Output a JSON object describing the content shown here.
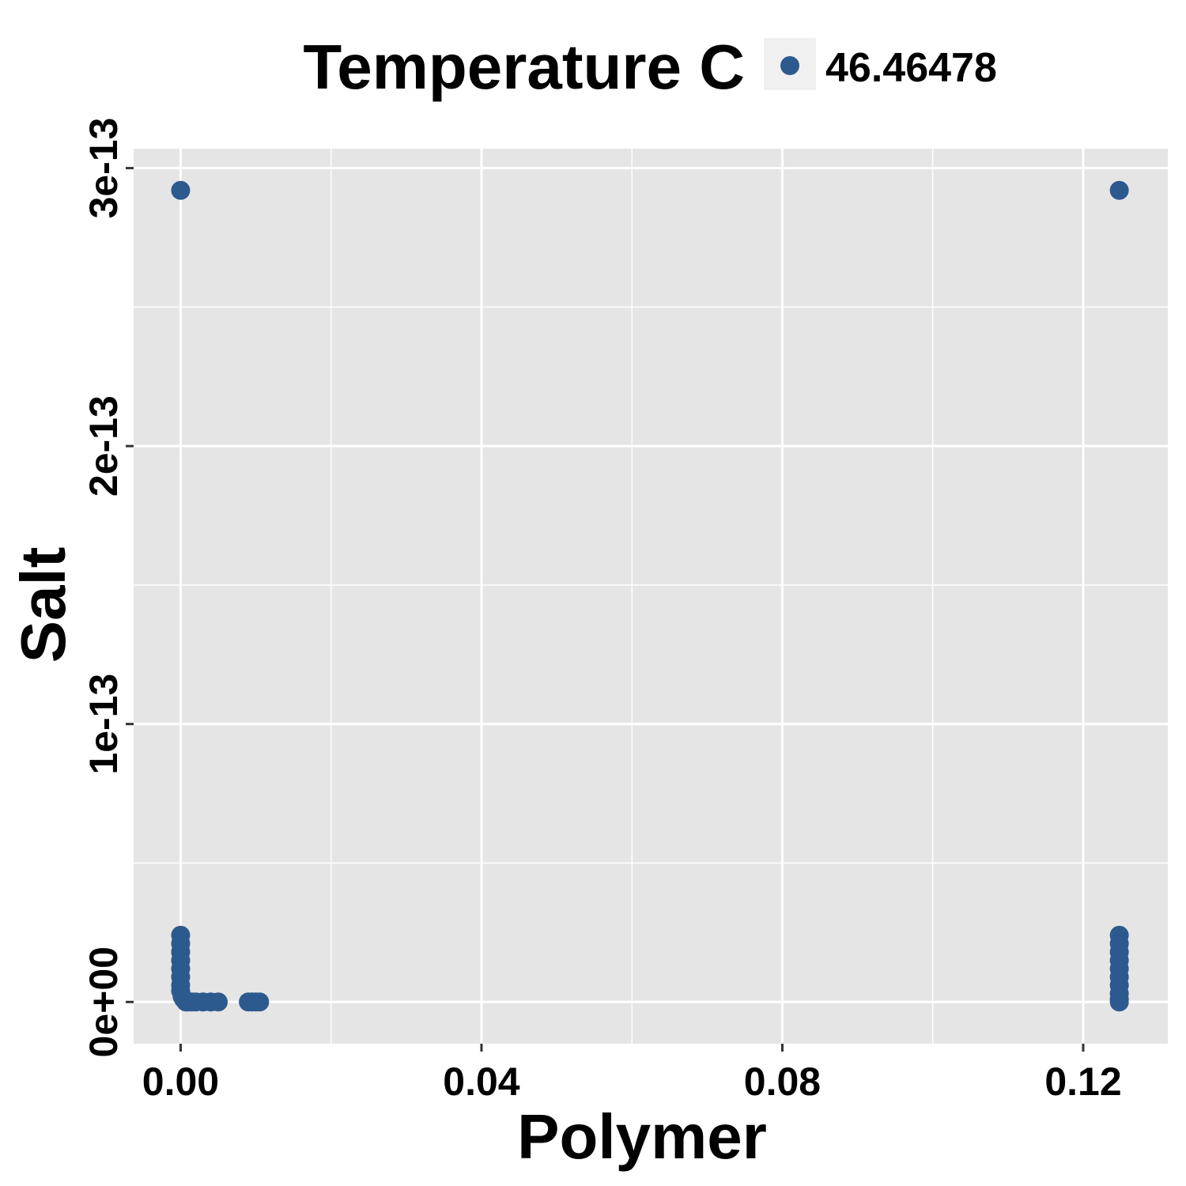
{
  "chart_data": {
    "type": "scatter",
    "title": "",
    "xlabel": "Polymer",
    "ylabel": "Salt",
    "xlim": [
      -0.00625,
      0.13125
    ],
    "ylim": [
      -1.5e-14,
      3.07e-13
    ],
    "x_ticks": [
      {
        "value": 0.0,
        "label": "0.00"
      },
      {
        "value": 0.04,
        "label": "0.04"
      },
      {
        "value": 0.08,
        "label": "0.08"
      },
      {
        "value": 0.12,
        "label": "0.12"
      }
    ],
    "y_ticks": [
      {
        "value": 0.0,
        "label": "0e+00"
      },
      {
        "value": 1e-13,
        "label": "1e-13"
      },
      {
        "value": 2e-13,
        "label": "2e-13"
      },
      {
        "value": 3e-13,
        "label": "3e-13"
      }
    ],
    "grid": true,
    "legend": {
      "title": "Temperature C",
      "placement": "top",
      "entries": [
        {
          "label": "46.46478",
          "color": "#2d5a8e"
        }
      ]
    },
    "series": [
      {
        "name": "46.46478",
        "color": "#2d5a8e",
        "points": [
          {
            "x": 0.0,
            "y": 2.92e-13
          },
          {
            "x": 0.1248,
            "y": 2.92e-13
          },
          {
            "x": 0.0,
            "y": 2.4e-14
          },
          {
            "x": 0.0,
            "y": 2.1e-14
          },
          {
            "x": 0.0,
            "y": 1.8e-14
          },
          {
            "x": 0.0,
            "y": 1.5e-14
          },
          {
            "x": 0.0,
            "y": 1.2e-14
          },
          {
            "x": 0.0,
            "y": 9e-15
          },
          {
            "x": 0.0,
            "y": 6e-15
          },
          {
            "x": 0.0,
            "y": 4e-15
          },
          {
            "x": 0.0002,
            "y": 2e-15
          },
          {
            "x": 0.0004,
            "y": 1e-15
          },
          {
            "x": 0.0007,
            "y": 0.0
          },
          {
            "x": 0.001,
            "y": 0.0
          },
          {
            "x": 0.0015,
            "y": 0.0
          },
          {
            "x": 0.002,
            "y": 0.0
          },
          {
            "x": 0.003,
            "y": 0.0
          },
          {
            "x": 0.004,
            "y": 0.0
          },
          {
            "x": 0.005,
            "y": 0.0
          },
          {
            "x": 0.009,
            "y": 0.0
          },
          {
            "x": 0.0095,
            "y": 0.0
          },
          {
            "x": 0.01,
            "y": 0.0
          },
          {
            "x": 0.0105,
            "y": 0.0
          },
          {
            "x": 0.1248,
            "y": 2.4e-14
          },
          {
            "x": 0.1248,
            "y": 2.1e-14
          },
          {
            "x": 0.1248,
            "y": 1.8e-14
          },
          {
            "x": 0.1248,
            "y": 1.5e-14
          },
          {
            "x": 0.1248,
            "y": 1.2e-14
          },
          {
            "x": 0.1248,
            "y": 9e-15
          },
          {
            "x": 0.1248,
            "y": 6e-15
          },
          {
            "x": 0.1248,
            "y": 3e-15
          },
          {
            "x": 0.1248,
            "y": 1e-15
          },
          {
            "x": 0.1248,
            "y": 0.0
          }
        ]
      }
    ]
  }
}
